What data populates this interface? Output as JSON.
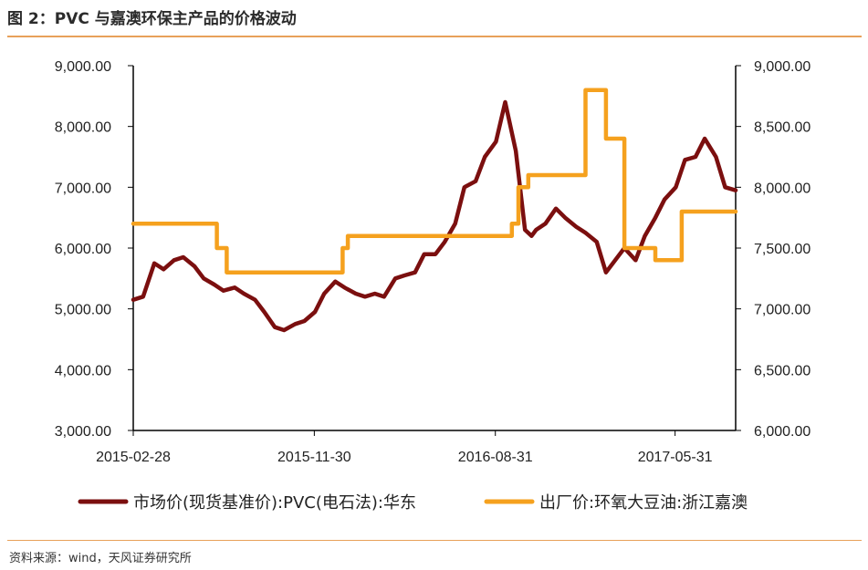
{
  "header": {
    "title": "图 2：PVC 与嘉澳环保主产品的价格波动"
  },
  "footer": {
    "source": "资料来源：wind，天风证券研究所"
  },
  "colors": {
    "accent_rule": "#e8a15a",
    "series_pvc": "#7b0f0f",
    "series_soy": "#f5a11e"
  },
  "chart_data": {
    "type": "line",
    "title": "",
    "x_tick_labels": [
      "2015-02-28",
      "2015-11-30",
      "2016-08-31",
      "2017-05-31"
    ],
    "x_range": [
      "2015-02-28",
      "2017-08-31"
    ],
    "y_left": {
      "range": [
        3000,
        9000
      ],
      "tick_labels": [
        "3,000.00",
        "4,000.00",
        "5,000.00",
        "6,000.00",
        "7,000.00",
        "8,000.00",
        "9,000.00"
      ]
    },
    "y_right": {
      "range": [
        6000,
        9000
      ],
      "tick_labels": [
        "6,000.00",
        "6,500.00",
        "7,000.00",
        "7,500.00",
        "8,000.00",
        "8,500.00",
        "9,000.00"
      ]
    },
    "grid": false,
    "legend_position": "bottom",
    "series": [
      {
        "name": "市场价(现货基准价):PVC(电石法):华东",
        "axis": "left",
        "x": [
          "2015-02-28",
          "2015-03-15",
          "2015-04-01",
          "2015-04-15",
          "2015-05-01",
          "2015-05-15",
          "2015-06-01",
          "2015-06-15",
          "2015-07-01",
          "2015-07-15",
          "2015-08-01",
          "2015-08-15",
          "2015-09-01",
          "2015-09-15",
          "2015-10-01",
          "2015-10-15",
          "2015-11-01",
          "2015-11-15",
          "2015-12-01",
          "2015-12-15",
          "2016-01-01",
          "2016-01-15",
          "2016-02-01",
          "2016-02-15",
          "2016-03-01",
          "2016-03-15",
          "2016-04-01",
          "2016-04-15",
          "2016-05-01",
          "2016-05-15",
          "2016-06-01",
          "2016-06-15",
          "2016-07-01",
          "2016-07-15",
          "2016-08-01",
          "2016-08-15",
          "2016-09-01",
          "2016-09-15",
          "2016-10-01",
          "2016-10-15",
          "2016-10-25",
          "2016-11-01",
          "2016-11-15",
          "2016-12-01",
          "2016-12-15",
          "2017-01-01",
          "2017-01-15",
          "2017-02-01",
          "2017-02-15",
          "2017-03-01",
          "2017-03-15",
          "2017-04-01",
          "2017-04-15",
          "2017-05-01",
          "2017-05-15",
          "2017-06-01",
          "2017-06-15",
          "2017-07-01",
          "2017-07-15",
          "2017-08-01",
          "2017-08-15",
          "2017-08-31"
        ],
        "values": [
          5150,
          5200,
          5750,
          5650,
          5800,
          5850,
          5700,
          5500,
          5400,
          5300,
          5350,
          5250,
          5150,
          4950,
          4700,
          4650,
          4750,
          4800,
          4950,
          5250,
          5450,
          5350,
          5250,
          5200,
          5250,
          5200,
          5500,
          5550,
          5600,
          5900,
          5900,
          6100,
          6400,
          7000,
          7100,
          7500,
          7750,
          8400,
          7600,
          6300,
          6200,
          6300,
          6400,
          6650,
          6500,
          6350,
          6250,
          6100,
          5600,
          5800,
          6000,
          5800,
          6200,
          6500,
          6800,
          7000,
          7450,
          7500,
          7800,
          7500,
          7000,
          6950
        ]
      },
      {
        "name": "出厂价:环氧大豆油:浙江嘉澳",
        "axis": "right",
        "x": [
          "2015-02-28",
          "2015-07-05",
          "2015-07-05",
          "2015-07-20",
          "2015-07-20",
          "2016-01-12",
          "2016-01-12",
          "2016-01-20",
          "2016-01-20",
          "2016-09-25",
          "2016-09-25",
          "2016-10-05",
          "2016-10-05",
          "2016-10-20",
          "2016-10-20",
          "2017-01-15",
          "2017-01-15",
          "2017-02-15",
          "2017-02-15",
          "2017-03-15",
          "2017-03-15",
          "2017-05-01",
          "2017-05-01",
          "2017-06-10",
          "2017-06-10",
          "2017-07-15",
          "2017-07-15",
          "2017-08-31"
        ],
        "values": [
          7700,
          7700,
          7500,
          7500,
          7300,
          7300,
          7500,
          7500,
          7600,
          7600,
          7700,
          7700,
          8000,
          8000,
          8100,
          8100,
          8800,
          8800,
          8400,
          8400,
          7500,
          7500,
          7400,
          7400,
          7800,
          7800,
          7800,
          7800
        ]
      }
    ]
  },
  "legend": {
    "item1_label": "市场价(现货基准价):PVC(电石法):华东",
    "item2_label": "出厂价:环氧大豆油:浙江嘉澳"
  }
}
